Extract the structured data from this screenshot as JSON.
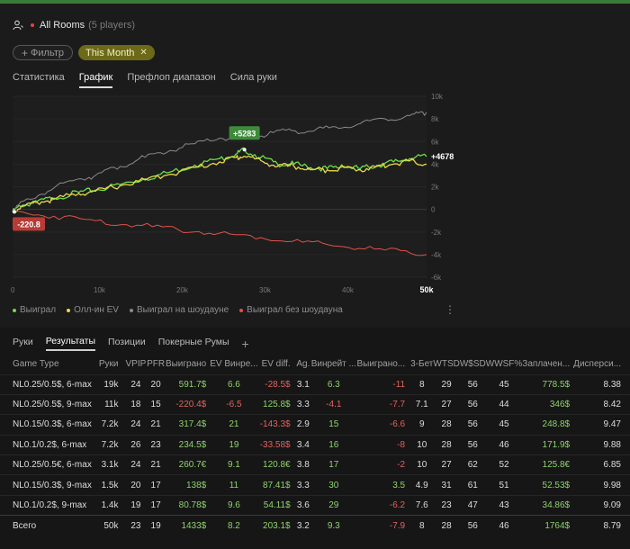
{
  "header": {
    "title": "All Rooms",
    "subtitle": "(5 players)"
  },
  "filters": {
    "add_label": "Фильтр",
    "active_label": "This Month"
  },
  "tabs": [
    {
      "label": "Статистика",
      "active": false
    },
    {
      "label": "График",
      "active": true
    },
    {
      "label": "Префлоп диапазон",
      "active": false
    },
    {
      "label": "Сила руки",
      "active": false
    }
  ],
  "chart_data": {
    "type": "line",
    "x_ticks": [
      "0",
      "10k",
      "20k",
      "30k",
      "40k",
      "50k"
    ],
    "y_ticks": [
      "10k",
      "8k",
      "6k",
      "4k",
      "2k",
      "0",
      "-2k",
      "-4k",
      "-6k"
    ],
    "xlim": [
      0,
      50000
    ],
    "ylim": [
      -6000,
      10000
    ],
    "annotations": {
      "peak_label": "+5283",
      "end_label": "+4678",
      "low_label": "-220.8"
    },
    "series": [
      {
        "name": "Выиграл",
        "color": "#6fdc4c",
        "x": [
          0,
          1000,
          3000,
          5000,
          8000,
          10000,
          13000,
          16000,
          19000,
          22000,
          25000,
          27000,
          28000,
          30000,
          32000,
          34000,
          36000,
          38000,
          40000,
          42000,
          44000,
          46000,
          48000,
          50000
        ],
        "y": [
          -221,
          300,
          700,
          1000,
          1500,
          1700,
          2200,
          2700,
          3300,
          3900,
          4500,
          4900,
          5283,
          4600,
          4000,
          4000,
          3700,
          3600,
          3800,
          3600,
          3900,
          4200,
          4500,
          4678
        ]
      },
      {
        "name": "Олл-ин EV",
        "color": "#e8d949",
        "x": [
          0,
          1000,
          3000,
          5000,
          8000,
          10000,
          13000,
          16000,
          19000,
          22000,
          25000,
          27000,
          28000,
          30000,
          32000,
          34000,
          36000,
          38000,
          40000,
          42000,
          44000,
          46000,
          48000,
          50000
        ],
        "y": [
          -221,
          200,
          600,
          900,
          1400,
          1600,
          2100,
          2600,
          3100,
          3700,
          4200,
          4600,
          4700,
          4300,
          3800,
          3800,
          3500,
          3500,
          3700,
          3500,
          3800,
          4000,
          4300,
          4000
        ]
      },
      {
        "name": "Выиграл на шоудауне",
        "color": "#8a8a8a",
        "x": [
          0,
          2000,
          5000,
          8000,
          10000,
          13000,
          16000,
          19000,
          22000,
          25000,
          28000,
          30000,
          33000,
          36000,
          39000,
          42000,
          45000,
          48000,
          50000
        ],
        "y": [
          0,
          900,
          1900,
          2700,
          3000,
          3800,
          4600,
          5200,
          5800,
          6300,
          6200,
          6500,
          7000,
          6900,
          7300,
          7600,
          8000,
          8300,
          8600
        ]
      },
      {
        "name": "Выиграл без шоудауна",
        "color": "#e0514a",
        "x": [
          0,
          5000,
          10000,
          15000,
          20000,
          25000,
          30000,
          35000,
          40000,
          45000,
          50000
        ],
        "y": [
          -221,
          -600,
          -1000,
          -1400,
          -1800,
          -2100,
          -2500,
          -2900,
          -3300,
          -3600,
          -4000
        ]
      }
    ]
  },
  "legend_items": [
    {
      "label": "Выиграл",
      "color": "#6fdc4c"
    },
    {
      "label": "Олл-ин EV",
      "color": "#e8d949"
    },
    {
      "label": "Выиграл на шоудауне",
      "color": "#8a8a8a"
    },
    {
      "label": "Выиграл без шоудауна",
      "color": "#e0514a"
    }
  ],
  "kebab_glyph": "⋮",
  "bottom_tabs": [
    {
      "label": "Руки",
      "active": false
    },
    {
      "label": "Результаты",
      "active": true
    },
    {
      "label": "Позиции",
      "active": false
    },
    {
      "label": "Покерные Румы",
      "active": false
    }
  ],
  "add_tab_glyph": "+",
  "table": {
    "columns": [
      "Game Type",
      "Руки",
      "VPIP",
      "PFR",
      "Выиграно",
      "EV Винре...",
      "EV diff.",
      "Ag.",
      "Винрейт ...",
      "Выиграно...",
      "3-Бет",
      "WTSD",
      "W$SD",
      "WWSF%",
      "Заплачен...",
      "Дисперси..."
    ],
    "rows": [
      [
        "NL0.25/0.5$, 6-max",
        "19k",
        "24",
        "20",
        "591.7$",
        "6.6",
        "-28.5$",
        "3.1",
        "6.3",
        "-11",
        "8",
        "29",
        "56",
        "45",
        "778.5$",
        "8.38"
      ],
      [
        "NL0.25/0.5$, 9-max",
        "11k",
        "18",
        "15",
        "-220.4$",
        "-6.5",
        "125.8$",
        "3.3",
        "-4.1",
        "-7.7",
        "7.1",
        "27",
        "56",
        "44",
        "346$",
        "8.42"
      ],
      [
        "NL0.15/0.3$, 6-max",
        "7.2k",
        "24",
        "21",
        "317.4$",
        "21",
        "-143.3$",
        "2.9",
        "15",
        "-6.6",
        "9",
        "28",
        "56",
        "45",
        "248.8$",
        "9.47"
      ],
      [
        "NL0.1/0.2$, 6-max",
        "7.2k",
        "26",
        "23",
        "234.5$",
        "19",
        "-33.58$",
        "3.4",
        "16",
        "-8",
        "10",
        "28",
        "56",
        "46",
        "171.9$",
        "9.88"
      ],
      [
        "NL0.25/0.5€, 6-max",
        "3.1k",
        "24",
        "21",
        "260.7€",
        "9.1",
        "120.8€",
        "3.8",
        "17",
        "-2",
        "10",
        "27",
        "62",
        "52",
        "125.8€",
        "6.85"
      ],
      [
        "NL0.15/0.3$, 9-max",
        "1.5k",
        "20",
        "17",
        "138$",
        "11",
        "87.41$",
        "3.3",
        "30",
        "3.5",
        "4.9",
        "31",
        "61",
        "51",
        "52.53$",
        "9.98"
      ],
      [
        "NL0.1/0.2$, 9-max",
        "1.4k",
        "19",
        "17",
        "80.78$",
        "9.6",
        "54.11$",
        "3.6",
        "29",
        "-6.2",
        "7.6",
        "23",
        "47",
        "43",
        "34.86$",
        "9.09"
      ]
    ],
    "total": [
      "Всего",
      "50k",
      "23",
      "19",
      "1433$",
      "8.2",
      "203.1$",
      "3.2",
      "9.3",
      "-7.9",
      "8",
      "28",
      "56",
      "46",
      "1764$",
      "8.79"
    ]
  }
}
